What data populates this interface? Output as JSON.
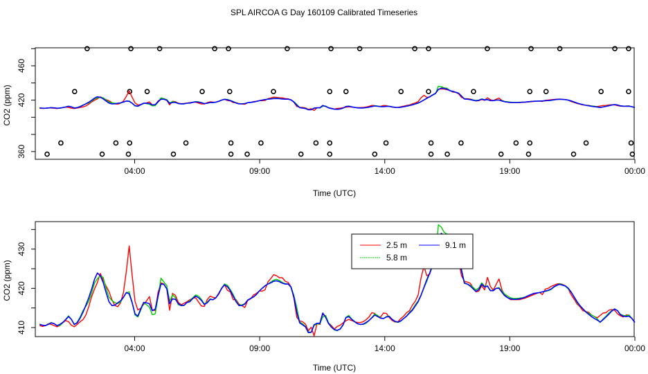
{
  "figure_title": "SPL AIRCOA G  Day 160109  Calibrated Timeseries",
  "chart_data": [
    {
      "type": "line",
      "panel": "top",
      "xlabel": "Time (UTC)",
      "ylabel": "CO2 (ppm)",
      "xlim": [
        0,
        24
      ],
      "ylim": [
        351,
        481
      ],
      "x_ticks": [
        4,
        9,
        14,
        19,
        24
      ],
      "x_tick_labels": [
        "04:00",
        "09:00",
        "14:00",
        "19:00",
        "00:00"
      ],
      "y_ticks": [
        360,
        420,
        460
      ],
      "y_tick_labels": [
        "360",
        "420",
        "460"
      ],
      "y_tick_marks": [
        360,
        380,
        400,
        420,
        440,
        460,
        480
      ],
      "grid": false,
      "series": [
        {
          "name": "2.5 m",
          "color": "#ff0000",
          "values": [
            410.5,
            410.3,
            410.5,
            411.0,
            410.8,
            410.5,
            410.2,
            410.5,
            411.2,
            411.8,
            411.5,
            410.6,
            410.2,
            410.8,
            411.5,
            412.0,
            413.2,
            415.3,
            417.9,
            419.8,
            421.5,
            423.8,
            422.2,
            420.6,
            419.2,
            417.1,
            415.7,
            415.3,
            416.3,
            418.9,
            424.2,
            430.8,
            423.5,
            416.7,
            414.5,
            414.9,
            415.9,
            416.8,
            417.9,
            414.5,
            414.3,
            419.0,
            421.4,
            421.1,
            419.9,
            414.4,
            418.7,
            418.2,
            416.4,
            415.8,
            416.2,
            416.6,
            417.1,
            417.5,
            417.6,
            416.5,
            415.5,
            415.4,
            417.1,
            418.0,
            417.7,
            417.6,
            418.5,
            420.0,
            420.9,
            419.5,
            419.1,
            417.1,
            417.1,
            416.0,
            415.6,
            415.1,
            416.9,
            417.3,
            418.3,
            418.7,
            419.3,
            419.3,
            419.6,
            421.6,
            422.5,
            423.5,
            423.2,
            422.7,
            422.7,
            421.8,
            421.5,
            420.4,
            417.5,
            412.6,
            411.7,
            411.5,
            410.9,
            409.2,
            410.1,
            407.9,
            411.0,
            410.8,
            413.5,
            412.7,
            411.2,
            410.5,
            409.6,
            410.3,
            410.6,
            411.2,
            411.7,
            412.1,
            411.8,
            411.5,
            411.3,
            411.3,
            411.5,
            412.0,
            412.7,
            413.8,
            413.6,
            412.9,
            412.7,
            413.7,
            413.6,
            412.6,
            411.8,
            411.4,
            411.5,
            412.3,
            412.9,
            413.8,
            414.3,
            415.7,
            416.7,
            418.3,
            422.6,
            425.6,
            423.2,
            423.6,
            425.8,
            427.6,
            432.4,
            433.0,
            432.8,
            432.1,
            431.3,
            429.3,
            429.1,
            427.2,
            423.2,
            421.8,
            421.6,
            421.3,
            420.2,
            419.1,
            419.3,
            420.7,
            419.6,
            422.8,
            420.5,
            419.5,
            421.0,
            422.4,
            419.6,
            418.3,
            417.6,
            417.1,
            417.1,
            417.1,
            417.1,
            417.3,
            417.5,
            417.8,
            418.1,
            418.4,
            418.7,
            419.0,
            418.4,
            419.8,
            420.0,
            420.5,
            420.8,
            421.1,
            421.2,
            421.0,
            420.6,
            419.8,
            418.3,
            417.2,
            416.0,
            415.3,
            414.3,
            414.1,
            413.9,
            413.2,
            412.8,
            412.5,
            413.1,
            413.7,
            413.8,
            414.4,
            414.6,
            414.4,
            413.5,
            413.0,
            412.7,
            413.2,
            413.2,
            412.3,
            411.3
          ]
        },
        {
          "name": "5.8 m",
          "color": "#00cd00",
          "values": [
            410.9,
            410.6,
            410.5,
            410.9,
            411.3,
            411.0,
            410.5,
            410.5,
            411.2,
            412.1,
            413.0,
            412.1,
            410.7,
            411.4,
            412.7,
            414.3,
            415.4,
            416.7,
            418.8,
            421.3,
            422.5,
            423.2,
            422.8,
            420.1,
            417.8,
            416.9,
            416.4,
            416.1,
            416.5,
            417.7,
            418.9,
            419.1,
            416.5,
            413.2,
            412.7,
            414.4,
            416.3,
            415.8,
            415.2,
            413.3,
            413.5,
            417.7,
            422.6,
            421.6,
            420.7,
            416.7,
            418.3,
            417.6,
            415.8,
            415.6,
            415.6,
            416.4,
            416.8,
            417.6,
            418.3,
            418.0,
            417.2,
            416.0,
            416.5,
            417.3,
            417.1,
            417.6,
            418.7,
            420.1,
            421.1,
            420.8,
            419.7,
            418.4,
            416.9,
            415.7,
            415.8,
            416.1,
            417.0,
            417.4,
            417.8,
            418.4,
            419.3,
            420.0,
            420.7,
            421.1,
            421.6,
            422.1,
            422.3,
            422.0,
            421.5,
            421.2,
            421.1,
            420.4,
            418.2,
            415.1,
            411.4,
            411.0,
            410.3,
            408.9,
            408.8,
            410.5,
            410.9,
            411.0,
            412.7,
            413.1,
            411.2,
            410.2,
            409.4,
            409.2,
            409.7,
            410.6,
            412.6,
            413.1,
            412.2,
            411.6,
            411.0,
            410.8,
            410.8,
            411.1,
            411.8,
            412.6,
            413.5,
            413.1,
            412.5,
            412.3,
            412.8,
            412.9,
            412.1,
            411.5,
            411.3,
            411.6,
            412.3,
            413.0,
            413.9,
            414.6,
            415.8,
            416.8,
            418.3,
            420.1,
            421.8,
            423.8,
            425.7,
            427.4,
            436.2,
            435.6,
            434.3,
            433.8,
            431.3,
            430.0,
            429.1,
            428.1,
            424.9,
            421.5,
            421.1,
            420.8,
            420.3,
            419.6,
            420.1,
            421.4,
            420.6,
            420.5,
            419.5,
            419.4,
            420.0,
            420.2,
            419.3,
            418.5,
            418.0,
            417.6,
            417.4,
            417.4,
            417.5,
            417.6,
            417.8,
            418.1,
            418.4,
            418.7,
            418.8,
            418.9,
            419.1,
            419.2,
            419.4,
            419.7,
            420.3,
            420.7,
            421.2,
            420.9,
            420.5,
            419.8,
            419.0,
            417.7,
            416.4,
            415.5,
            414.8,
            414.1,
            413.6,
            413.2,
            412.8,
            412.2,
            411.3,
            412.2,
            412.9,
            413.7,
            414.3,
            414.8,
            414.3,
            413.4,
            413.1,
            413.0,
            413.2,
            412.3,
            411.3
          ]
        },
        {
          "name": "9.1 m",
          "color": "#0000ff",
          "values": [
            410.8,
            410.6,
            410.5,
            410.8,
            411.2,
            411.0,
            410.5,
            410.8,
            411.3,
            412.0,
            412.8,
            412.1,
            410.8,
            411.2,
            412.4,
            413.9,
            415.7,
            417.6,
            419.8,
            422.3,
            423.9,
            423.2,
            421.5,
            419.0,
            416.6,
            415.6,
            415.7,
            416.3,
            416.8,
            417.7,
            418.9,
            418.6,
            416.4,
            413.5,
            412.9,
            414.8,
            416.4,
            416.3,
            416.1,
            414.3,
            414.7,
            418.0,
            421.1,
            421.0,
            419.9,
            416.1,
            417.3,
            417.2,
            416.1,
            415.6,
            415.7,
            416.4,
            416.6,
            417.4,
            418.0,
            417.6,
            416.9,
            415.9,
            416.3,
            417.2,
            417.1,
            417.6,
            418.7,
            420.0,
            420.9,
            420.4,
            419.4,
            418.0,
            416.6,
            415.6,
            415.6,
            416.0,
            417.0,
            417.4,
            417.8,
            418.4,
            419.3,
            420.0,
            420.6,
            421.1,
            421.4,
            421.8,
            421.9,
            421.7,
            421.3,
            421.1,
            421.1,
            420.3,
            417.8,
            413.9,
            411.2,
            410.7,
            410.2,
            408.7,
            408.8,
            410.7,
            411.1,
            411.1,
            413.7,
            412.6,
            411.0,
            410.1,
            409.5,
            409.3,
            409.6,
            410.7,
            412.5,
            412.8,
            412.1,
            411.5,
            411.0,
            410.8,
            410.9,
            411.3,
            411.8,
            412.5,
            413.2,
            412.8,
            412.4,
            412.3,
            412.7,
            412.8,
            412.1,
            411.6,
            411.4,
            411.7,
            412.3,
            412.9,
            413.7,
            414.4,
            415.5,
            416.6,
            418.2,
            420.2,
            422.2,
            423.9,
            426.0,
            427.9,
            432.5,
            434.0,
            433.5,
            432.8,
            430.9,
            430.3,
            429.2,
            428.1,
            424.6,
            421.3,
            421.1,
            420.6,
            419.9,
            419.2,
            419.7,
            421.1,
            420.3,
            420.6,
            419.4,
            419.4,
            420.0,
            420.0,
            419.0,
            418.1,
            417.6,
            417.3,
            417.2,
            417.2,
            417.3,
            417.5,
            417.7,
            418.1,
            418.4,
            418.7,
            418.8,
            418.9,
            419.1,
            419.3,
            419.5,
            419.8,
            420.4,
            420.8,
            421.0,
            420.8,
            420.6,
            420.0,
            419.0,
            417.8,
            416.6,
            415.6,
            414.8,
            414.0,
            413.4,
            412.8,
            412.3,
            411.9,
            411.4,
            412.0,
            412.7,
            413.4,
            414.2,
            414.7,
            414.3,
            413.3,
            412.9,
            412.8,
            412.9,
            412.3,
            411.3
          ]
        }
      ],
      "annotation_circles": [
        {
          "x": 2.1,
          "y": 480
        },
        {
          "x": 3.85,
          "y": 480
        },
        {
          "x": 5.0,
          "y": 480
        },
        {
          "x": 7.2,
          "y": 480
        },
        {
          "x": 7.75,
          "y": 480
        },
        {
          "x": 10.1,
          "y": 480
        },
        {
          "x": 11.85,
          "y": 480
        },
        {
          "x": 13.0,
          "y": 480
        },
        {
          "x": 15.2,
          "y": 480
        },
        {
          "x": 15.75,
          "y": 480
        },
        {
          "x": 18.1,
          "y": 480
        },
        {
          "x": 19.85,
          "y": 480
        },
        {
          "x": 21.0,
          "y": 480
        },
        {
          "x": 23.2,
          "y": 480
        },
        {
          "x": 23.75,
          "y": 480
        },
        {
          "x": 1.6,
          "y": 430
        },
        {
          "x": 3.8,
          "y": 430
        },
        {
          "x": 4.5,
          "y": 430
        },
        {
          "x": 6.7,
          "y": 430
        },
        {
          "x": 7.8,
          "y": 430
        },
        {
          "x": 9.55,
          "y": 430
        },
        {
          "x": 11.8,
          "y": 430
        },
        {
          "x": 12.45,
          "y": 430
        },
        {
          "x": 14.65,
          "y": 430
        },
        {
          "x": 15.75,
          "y": 430
        },
        {
          "x": 17.55,
          "y": 430
        },
        {
          "x": 19.8,
          "y": 430
        },
        {
          "x": 20.45,
          "y": 430
        },
        {
          "x": 22.65,
          "y": 430
        },
        {
          "x": 23.75,
          "y": 430
        },
        {
          "x": 1.05,
          "y": 370
        },
        {
          "x": 3.25,
          "y": 370
        },
        {
          "x": 3.8,
          "y": 370
        },
        {
          "x": 6.05,
          "y": 370
        },
        {
          "x": 7.85,
          "y": 370
        },
        {
          "x": 9.05,
          "y": 370
        },
        {
          "x": 11.25,
          "y": 370
        },
        {
          "x": 11.8,
          "y": 370
        },
        {
          "x": 14.05,
          "y": 370
        },
        {
          "x": 15.85,
          "y": 370
        },
        {
          "x": 17.05,
          "y": 370
        },
        {
          "x": 19.25,
          "y": 370
        },
        {
          "x": 19.8,
          "y": 370
        },
        {
          "x": 22.05,
          "y": 370
        },
        {
          "x": 23.85,
          "y": 370
        },
        {
          "x": 0.5,
          "y": 357
        },
        {
          "x": 2.7,
          "y": 357
        },
        {
          "x": 3.75,
          "y": 357
        },
        {
          "x": 5.55,
          "y": 357
        },
        {
          "x": 7.85,
          "y": 357
        },
        {
          "x": 8.5,
          "y": 357
        },
        {
          "x": 10.65,
          "y": 357
        },
        {
          "x": 11.8,
          "y": 357
        },
        {
          "x": 13.6,
          "y": 357
        },
        {
          "x": 15.85,
          "y": 357
        },
        {
          "x": 16.5,
          "y": 357
        },
        {
          "x": 18.65,
          "y": 357
        },
        {
          "x": 19.75,
          "y": 357
        },
        {
          "x": 21.55,
          "y": 357
        },
        {
          "x": 23.9,
          "y": 357
        }
      ]
    },
    {
      "type": "line",
      "panel": "bottom",
      "xlabel": "Time (UTC)",
      "ylabel": "CO2 (ppm)",
      "xlim": [
        0,
        24
      ],
      "ylim": [
        407.7,
        437.0
      ],
      "x_ticks": [
        4,
        9,
        14,
        19,
        24
      ],
      "x_tick_labels": [
        "04:00",
        "09:00",
        "14:00",
        "19:00",
        "00:00"
      ],
      "y_ticks": [
        410,
        420,
        430
      ],
      "y_tick_labels": [
        "410",
        "420",
        "430"
      ],
      "y_tick_marks": [
        410,
        415,
        420,
        425,
        430,
        435
      ],
      "grid": false,
      "legend": {
        "position": "top-center",
        "entries": [
          "2.5 m",
          "9.1 m",
          "5.8 m"
        ]
      },
      "series_ref": "same as top panel"
    }
  ]
}
